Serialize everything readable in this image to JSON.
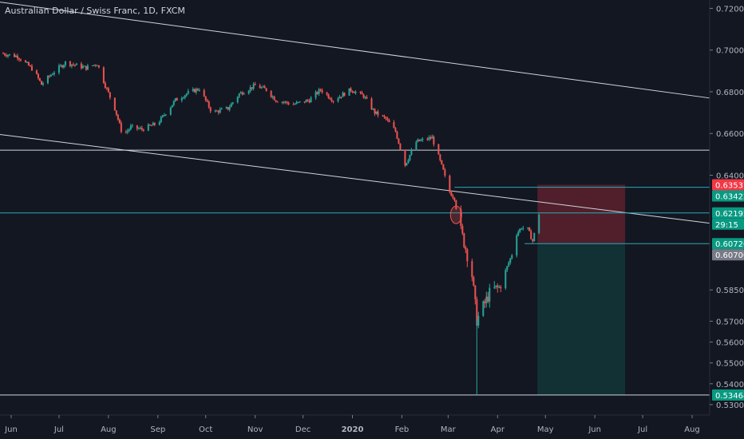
{
  "header": {
    "title": "Australian Dollar / Swiss Franc, 1D, FXCM"
  },
  "chart_data": {
    "type": "candlestick",
    "title": "Australian Dollar / Swiss Franc, 1D, FXCM",
    "ylim": [
      0.525,
      0.724
    ],
    "xlim": [
      "2019-05-25",
      "2020-08-12"
    ],
    "y_ticks": [
      "0.72000",
      "0.70000",
      "0.68000",
      "0.66000",
      "0.64000",
      "0.58500",
      "0.57000",
      "0.56000",
      "0.55000",
      "0.54000",
      "0.53000"
    ],
    "x_ticks": [
      {
        "label": "Jun",
        "date": "2019-06-01"
      },
      {
        "label": "Jul",
        "date": "2019-07-01"
      },
      {
        "label": "Aug",
        "date": "2019-08-01"
      },
      {
        "label": "Sep",
        "date": "2019-09-01"
      },
      {
        "label": "Oct",
        "date": "2019-10-01"
      },
      {
        "label": "Nov",
        "date": "2019-11-01"
      },
      {
        "label": "Dec",
        "date": "2019-12-01"
      },
      {
        "label": "2020",
        "date": "2020-01-01"
      },
      {
        "label": "Feb",
        "date": "2020-02-01"
      },
      {
        "label": "Mar",
        "date": "2020-03-01"
      },
      {
        "label": "Apr",
        "date": "2020-04-01"
      },
      {
        "label": "May",
        "date": "2020-05-01"
      },
      {
        "label": "Jun",
        "date": "2020-06-01"
      },
      {
        "label": "Jul",
        "date": "2020-07-01"
      },
      {
        "label": "Aug",
        "date": "2020-08-01"
      }
    ],
    "close_series": [
      [
        "2019-05-25",
        0.6985
      ],
      [
        "2019-06-05",
        0.697
      ],
      [
        "2019-06-15",
        0.6905
      ],
      [
        "2019-06-20",
        0.6835
      ],
      [
        "2019-06-27",
        0.689
      ],
      [
        "2019-07-05",
        0.694
      ],
      [
        "2019-07-18",
        0.6915
      ],
      [
        "2019-07-25",
        0.6935
      ],
      [
        "2019-07-30",
        0.683
      ],
      [
        "2019-08-05",
        0.672
      ],
      [
        "2019-08-10",
        0.659
      ],
      [
        "2019-08-15",
        0.663
      ],
      [
        "2019-08-22",
        0.662
      ],
      [
        "2019-09-01",
        0.665
      ],
      [
        "2019-09-12",
        0.676
      ],
      [
        "2019-09-20",
        0.6795
      ],
      [
        "2019-09-27",
        0.6815
      ],
      [
        "2019-10-05",
        0.67
      ],
      [
        "2019-10-15",
        0.672
      ],
      [
        "2019-10-22",
        0.679
      ],
      [
        "2019-11-01",
        0.683
      ],
      [
        "2019-11-08",
        0.681
      ],
      [
        "2019-11-14",
        0.676
      ],
      [
        "2019-11-25",
        0.674
      ],
      [
        "2019-12-05",
        0.676
      ],
      [
        "2019-12-12",
        0.681
      ],
      [
        "2019-12-20",
        0.676
      ],
      [
        "2019-12-31",
        0.681
      ],
      [
        "2020-01-08",
        0.678
      ],
      [
        "2020-01-15",
        0.67
      ],
      [
        "2020-01-22",
        0.667
      ],
      [
        "2020-01-28",
        0.661
      ],
      [
        "2020-02-03",
        0.645
      ],
      [
        "2020-02-10",
        0.656
      ],
      [
        "2020-02-20",
        0.658
      ],
      [
        "2020-02-27",
        0.642
      ],
      [
        "2020-03-01",
        0.633
      ],
      [
        "2020-03-05",
        0.629
      ],
      [
        "2020-03-08",
        0.616
      ],
      [
        "2020-03-12",
        0.605
      ],
      [
        "2020-03-16",
        0.592
      ],
      [
        "2020-03-19",
        0.5705
      ],
      [
        "2020-03-23",
        0.577
      ],
      [
        "2020-03-28",
        0.585
      ],
      [
        "2020-04-02",
        0.586
      ],
      [
        "2020-04-06",
        0.594
      ],
      [
        "2020-04-10",
        0.602
      ],
      [
        "2020-04-13",
        0.612
      ],
      [
        "2020-04-16",
        0.615
      ],
      [
        "2020-04-20",
        0.614
      ],
      [
        "2020-04-23",
        0.6085
      ],
      [
        "2020-04-27",
        0.6215
      ]
    ],
    "horizontal_lines": [
      0.652,
      0.6219,
      0.5346
    ],
    "trend_lines": [
      {
        "from": [
          "2019-05-25",
          0.723
        ],
        "to": [
          "2020-08-12",
          0.677
        ]
      },
      {
        "from": [
          "2019-05-25",
          0.6595
        ],
        "to": [
          "2020-08-12",
          0.617
        ]
      }
    ],
    "position": {
      "stop": 0.6354,
      "entry": 0.6342,
      "target_low": 0.6072,
      "target": 0.5346,
      "start": "2020-04-26",
      "end": "2020-06-20"
    },
    "price_badges": [
      {
        "label": "0.63537",
        "value": 0.6354,
        "color": "#f23645"
      },
      {
        "label": "0.63422",
        "value": 0.6342,
        "color": "#089981"
      },
      {
        "label": "0.62192",
        "value": 0.6219,
        "color": "#089981"
      },
      {
        "label": "29:15",
        "value": 0.6195,
        "color": "#089981"
      },
      {
        "label": "0.60720",
        "value": 0.6072,
        "color": "#089981"
      },
      {
        "label": "0.60700",
        "value": 0.607,
        "color": "#787b86"
      },
      {
        "label": "0.53464",
        "value": 0.5346,
        "color": "#089981"
      }
    ],
    "colors": {
      "up": "#26a69a",
      "down": "#ef5350",
      "background": "#131722",
      "line": "#d1d4dc",
      "accent_line": "#2aa8b8"
    },
    "grid": false
  }
}
